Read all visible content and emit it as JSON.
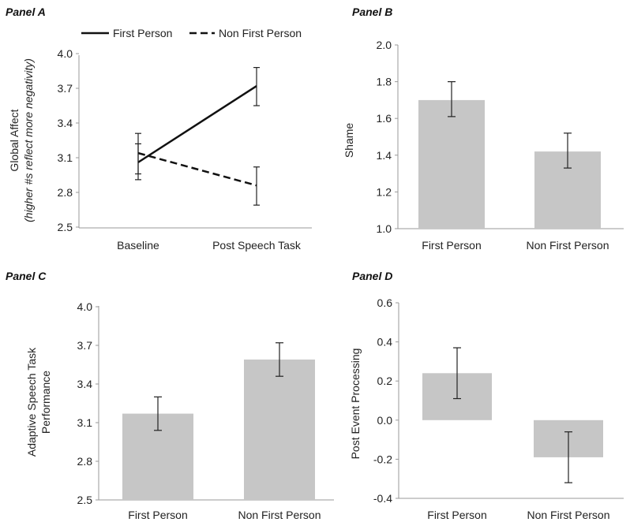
{
  "chart_data": [
    {
      "type": "line",
      "panel_title": "Panel  A",
      "ylabel": "Global Affect",
      "ylabel_sub": "(higher #s reflect more negativity)",
      "ylim": [
        2.5,
        4.0
      ],
      "yticks": [
        "2.5",
        "2.8",
        "3.1",
        "3.4",
        "3.7",
        "4.0"
      ],
      "categories": [
        "Baseline",
        "Post Speech Task"
      ],
      "series": [
        {
          "name": "First Person",
          "style": "solid",
          "values": [
            3.06,
            3.72
          ],
          "err_low": [
            2.96,
            3.55
          ],
          "err_high": [
            3.22,
            3.88
          ]
        },
        {
          "name": "Non First Person",
          "style": "dashed",
          "values": [
            3.14,
            2.86
          ],
          "err_low": [
            2.91,
            2.69
          ],
          "err_high": [
            3.31,
            3.02
          ]
        }
      ],
      "legend_position": "top"
    },
    {
      "type": "bar",
      "panel_title": "Panel  B",
      "ylabel": "Shame",
      "ylim": [
        1.0,
        2.0
      ],
      "yticks": [
        "1.0",
        "1.2",
        "1.4",
        "1.6",
        "1.8",
        "2.0"
      ],
      "categories": [
        "First Person",
        "Non First Person"
      ],
      "values": [
        1.7,
        1.42
      ],
      "err_low": [
        1.61,
        1.33
      ],
      "err_high": [
        1.8,
        1.52
      ]
    },
    {
      "type": "bar",
      "panel_title": "Panel  C",
      "ylabel": "Adaptive Speech Task",
      "ylabel_line2": "Performance",
      "ylim": [
        2.5,
        4.0
      ],
      "yticks": [
        "2.5",
        "2.8",
        "3.1",
        "3.4",
        "3.7",
        "4.0"
      ],
      "categories": [
        "First Person",
        "Non First Person"
      ],
      "values": [
        3.17,
        3.59
      ],
      "err_low": [
        3.04,
        3.46
      ],
      "err_high": [
        3.3,
        3.72
      ]
    },
    {
      "type": "bar",
      "panel_title": "Panel  D",
      "ylabel": "Post Event Processing",
      "ylim": [
        -0.4,
        0.6
      ],
      "yticks": [
        "-0.4",
        "-0.2",
        "0.0",
        "0.2",
        "0.4",
        "0.6"
      ],
      "categories": [
        "First Person",
        "Non First Person"
      ],
      "values": [
        0.24,
        -0.19
      ],
      "err_low": [
        0.11,
        -0.32
      ],
      "err_high": [
        0.37,
        -0.06
      ]
    }
  ]
}
